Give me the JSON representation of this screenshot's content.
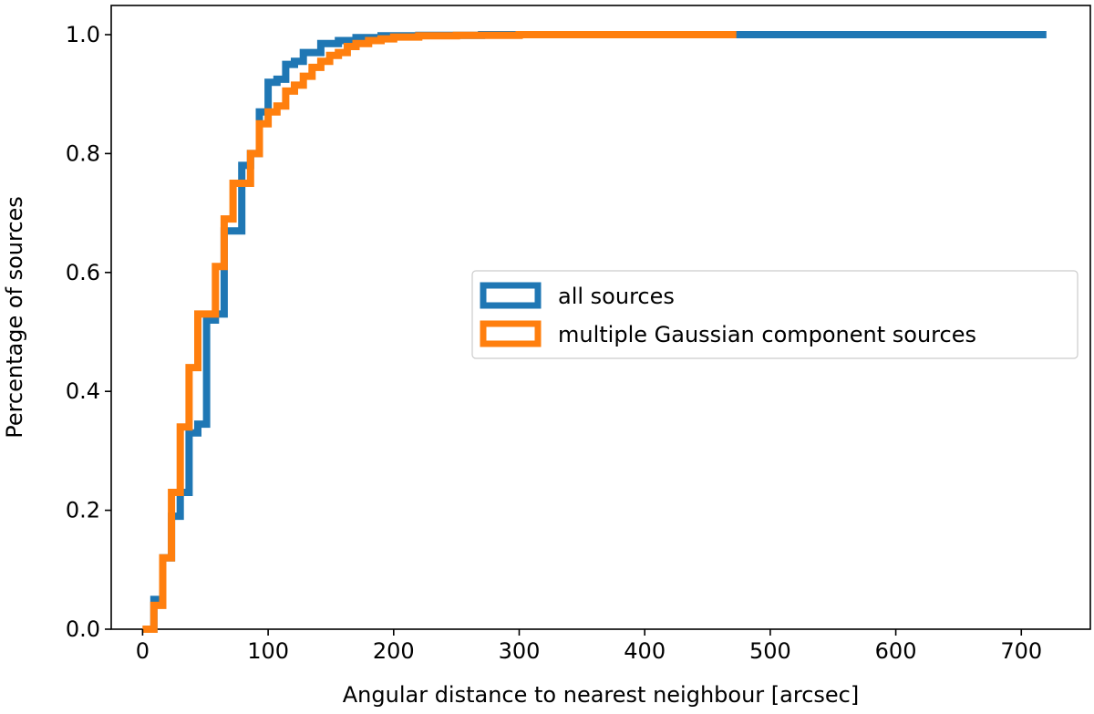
{
  "chart_data": {
    "type": "line",
    "title": "",
    "xlabel": "Angular distance to nearest neighbour [arcsec]",
    "ylabel": "Percentage of sources",
    "xlim": [
      -25,
      755
    ],
    "ylim": [
      0,
      1.0
    ],
    "xticks": [
      0,
      100,
      200,
      300,
      400,
      500,
      600,
      700
    ],
    "xtick_labels": [
      "0",
      "100",
      "200",
      "300",
      "400",
      "500",
      "600",
      "700"
    ],
    "yticks": [
      0.0,
      0.2,
      0.4,
      0.6,
      0.8,
      1.0
    ],
    "ytick_labels": [
      "0.0",
      "0.2",
      "0.4",
      "0.6",
      "0.8",
      "1.0"
    ],
    "grid": false,
    "legend_position": "center-right",
    "series": [
      {
        "name": "all sources",
        "color": "#1f77b4",
        "style": "step-cumulative",
        "x": [
          0,
          9,
          16,
          23,
          30,
          37,
          44,
          51,
          58,
          65,
          72,
          79,
          86,
          93,
          100,
          107,
          114,
          121,
          128,
          142,
          156,
          170,
          190,
          220,
          270,
          350,
          720
        ],
        "y": [
          0.0,
          0.05,
          0.12,
          0.19,
          0.23,
          0.33,
          0.345,
          0.52,
          0.53,
          0.67,
          0.67,
          0.78,
          0.8,
          0.87,
          0.92,
          0.925,
          0.95,
          0.955,
          0.97,
          0.985,
          0.99,
          0.995,
          0.998,
          0.999,
          1.0,
          1.0,
          1.0
        ]
      },
      {
        "name": "multiple Gaussian component sources",
        "color": "#ff7f0e",
        "style": "step-cumulative",
        "x": [
          0,
          9,
          16,
          23,
          30,
          37,
          44,
          51,
          58,
          65,
          72,
          79,
          86,
          93,
          100,
          107,
          114,
          121,
          128,
          135,
          142,
          149,
          156,
          163,
          170,
          180,
          190,
          200,
          220,
          250,
          300,
          350,
          473
        ],
        "y": [
          0.0,
          0.04,
          0.12,
          0.23,
          0.34,
          0.44,
          0.53,
          0.53,
          0.61,
          0.69,
          0.75,
          0.75,
          0.8,
          0.85,
          0.87,
          0.88,
          0.905,
          0.915,
          0.93,
          0.945,
          0.955,
          0.965,
          0.97,
          0.98,
          0.985,
          0.99,
          0.993,
          0.996,
          0.998,
          0.999,
          1.0,
          1.0,
          1.0
        ]
      }
    ]
  }
}
